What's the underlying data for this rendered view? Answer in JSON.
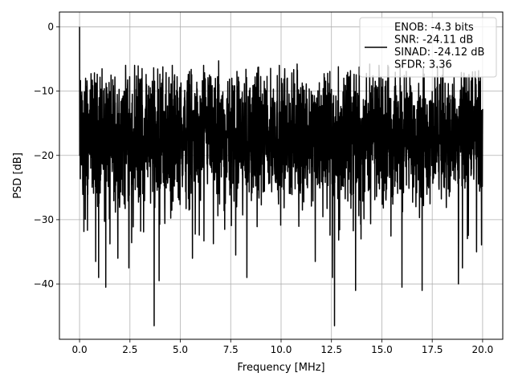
{
  "chart_data": {
    "type": "line",
    "title": "",
    "xlabel": "Frequency [MHz]",
    "ylabel": "PSD [dB]",
    "xlim": [
      -0.999,
      21.0
    ],
    "ylim": [
      -48.6,
      2.3
    ],
    "xticks": [
      0.0,
      2.5,
      5.0,
      7.5,
      10.0,
      12.5,
      15.0,
      17.5,
      20.0
    ],
    "xtick_labels": [
      "0.0",
      "2.5",
      "5.0",
      "7.5",
      "10.0",
      "12.5",
      "15.0",
      "17.5",
      "20.0"
    ],
    "yticks": [
      0,
      -10,
      -20,
      -30,
      -40
    ],
    "ytick_labels": [
      "0",
      "−10",
      "−20",
      "−30",
      "−40"
    ],
    "grid": true,
    "legend": {
      "placement": "upper right",
      "entries": [
        "ENOB: -4.3 bits",
        "SNR: -24.11 dB",
        "SINAD: -24.12 dB",
        "SFDR: 3.36"
      ]
    },
    "series": [
      {
        "color": "#000000",
        "x_range": [
          0.0,
          20.0
        ],
        "typical_range_db": [
          -28,
          -6
        ],
        "peak_max": {
          "x": 0.0,
          "y": 0.0
        },
        "dips": [
          {
            "x": 0.8,
            "y": -36.5
          },
          {
            "x": 0.95,
            "y": -39.0
          },
          {
            "x": 1.3,
            "y": -40.5
          },
          {
            "x": 1.9,
            "y": -36.0
          },
          {
            "x": 2.45,
            "y": -37.5
          },
          {
            "x": 3.7,
            "y": -46.5
          },
          {
            "x": 3.95,
            "y": -39.5
          },
          {
            "x": 5.6,
            "y": -36.0
          },
          {
            "x": 7.75,
            "y": -35.5
          },
          {
            "x": 8.3,
            "y": -39.0
          },
          {
            "x": 11.7,
            "y": -36.5
          },
          {
            "x": 12.55,
            "y": -39.0
          },
          {
            "x": 12.65,
            "y": -46.5
          },
          {
            "x": 13.7,
            "y": -41.0
          },
          {
            "x": 16.0,
            "y": -40.5
          },
          {
            "x": 17.0,
            "y": -41.0
          },
          {
            "x": 18.8,
            "y": -40.0
          },
          {
            "x": 19.0,
            "y": -37.5
          },
          {
            "x": 19.7,
            "y": -35.0
          }
        ],
        "peaks": [
          {
            "x": 0.3,
            "y": -8.0
          },
          {
            "x": 3.1,
            "y": -6.5
          },
          {
            "x": 4.6,
            "y": -6.0
          },
          {
            "x": 6.9,
            "y": -5.3
          },
          {
            "x": 10.8,
            "y": -5.8
          },
          {
            "x": 14.4,
            "y": -5.8
          },
          {
            "x": 15.3,
            "y": -6.0
          },
          {
            "x": 19.5,
            "y": -7.0
          }
        ]
      }
    ]
  }
}
